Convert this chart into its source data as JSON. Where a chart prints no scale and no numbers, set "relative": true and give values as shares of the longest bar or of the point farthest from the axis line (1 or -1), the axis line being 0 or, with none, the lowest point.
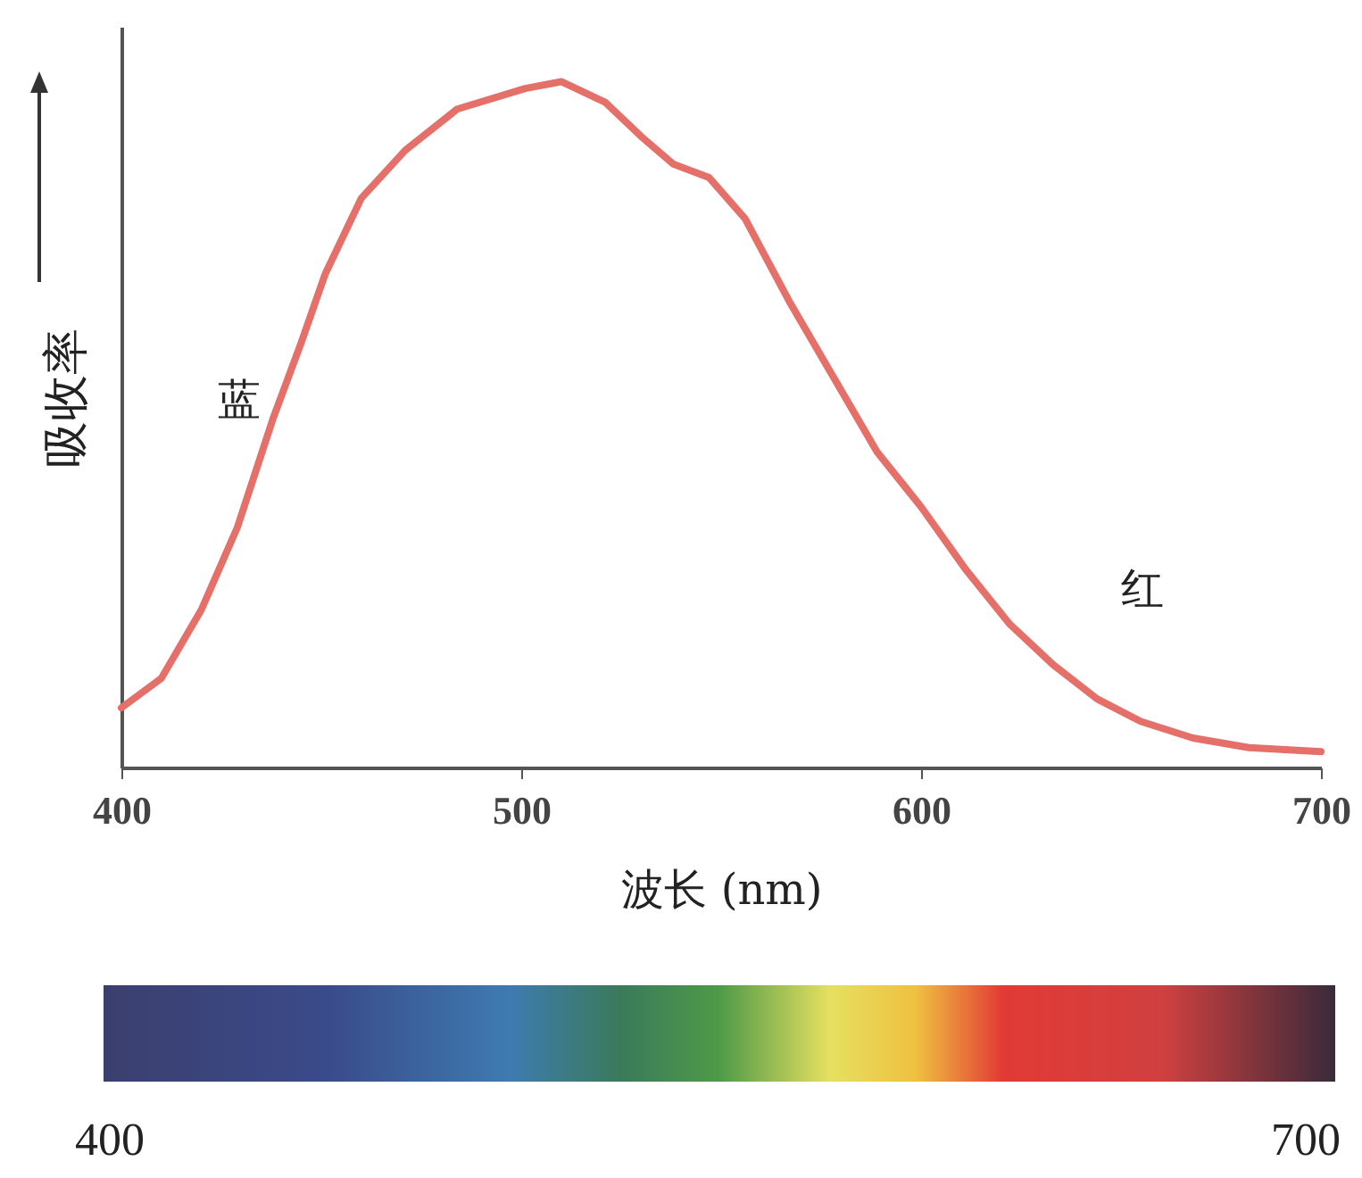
{
  "chart_data": {
    "type": "line",
    "relative": true,
    "xlabel": "波长 (nm)",
    "ylabel": "吸收率",
    "xlim": [
      400,
      700
    ],
    "xticks": [
      400,
      500,
      600,
      700
    ],
    "grid": false,
    "marker": "none",
    "line_style": "solid",
    "x": [
      400,
      410,
      420,
      429,
      438,
      445,
      451,
      460,
      471,
      484,
      501,
      510,
      521,
      530,
      538,
      547,
      556,
      567,
      578,
      589,
      600,
      611,
      622,
      633,
      644,
      655,
      668,
      682,
      700
    ],
    "series": [
      {
        "color": "#e5706a",
        "values": [
          0.087,
          0.13,
          0.23,
          0.35,
          0.51,
          0.62,
          0.72,
          0.83,
          0.9,
          0.96,
          0.99,
          1.0,
          0.97,
          0.92,
          0.88,
          0.86,
          0.8,
          0.68,
          0.57,
          0.46,
          0.38,
          0.29,
          0.21,
          0.15,
          0.1,
          0.067,
          0.043,
          0.029,
          0.023
        ]
      }
    ],
    "annotations": [
      "蓝",
      "红",
      "400",
      "700"
    ]
  }
}
